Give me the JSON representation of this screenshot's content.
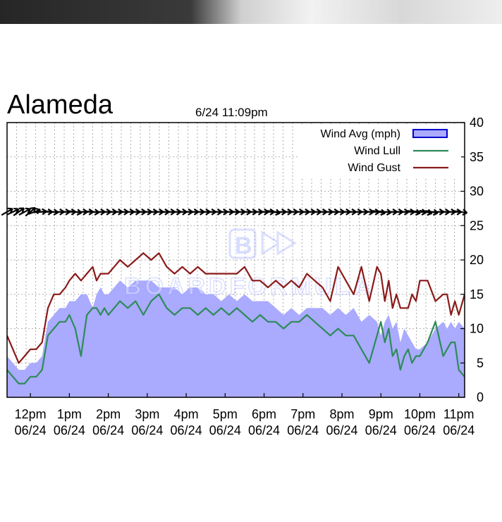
{
  "chart_data": {
    "type": "area",
    "title": "Alameda",
    "subtitle": "6/24 11:09pm",
    "xlabel": "",
    "ylabel": "",
    "ylim": [
      0,
      40
    ],
    "y_ticks": [
      0,
      5,
      10,
      15,
      20,
      25,
      30,
      35,
      40
    ],
    "x_ticks": [
      {
        "time": "12pm",
        "date": "06/24"
      },
      {
        "time": "1pm",
        "date": "06/24"
      },
      {
        "time": "2pm",
        "date": "06/24"
      },
      {
        "time": "3pm",
        "date": "06/24"
      },
      {
        "time": "4pm",
        "date": "06/24"
      },
      {
        "time": "5pm",
        "date": "06/24"
      },
      {
        "time": "6pm",
        "date": "06/24"
      },
      {
        "time": "7pm",
        "date": "06/24"
      },
      {
        "time": "8pm",
        "date": "06/24"
      },
      {
        "time": "9pm",
        "date": "06/24"
      },
      {
        "time": "10pm",
        "date": "06/24"
      },
      {
        "time": "11pm",
        "date": "06/24"
      }
    ],
    "x_range_hours": [
      11.4,
      23.15
    ],
    "grid": true,
    "legend_position": "top-right",
    "series": [
      {
        "name": "Wind Avg (mph)",
        "style": "area",
        "color": "#aaaaff",
        "x": [
          11.4,
          11.55,
          11.7,
          11.85,
          12.0,
          12.15,
          12.3,
          12.45,
          12.6,
          12.75,
          12.9,
          13.0,
          13.15,
          13.3,
          13.45,
          13.6,
          13.7,
          13.8,
          13.9,
          14.0,
          14.15,
          14.3,
          14.5,
          14.7,
          14.9,
          15.1,
          15.3,
          15.5,
          15.7,
          15.9,
          16.1,
          16.3,
          16.5,
          16.7,
          16.9,
          17.1,
          17.3,
          17.5,
          17.7,
          17.9,
          18.1,
          18.3,
          18.5,
          18.7,
          18.9,
          19.1,
          19.3,
          19.5,
          19.7,
          19.9,
          20.1,
          20.3,
          20.5,
          20.7,
          20.9,
          21.0,
          21.1,
          21.2,
          21.3,
          21.4,
          21.5,
          21.6,
          21.7,
          21.8,
          21.9,
          22.0,
          22.2,
          22.4,
          22.6,
          22.7,
          22.8,
          22.9,
          23.0,
          23.15
        ],
        "y": [
          6,
          5,
          4,
          4,
          5,
          5,
          6,
          11,
          12,
          13,
          13,
          14,
          14,
          15,
          15,
          13,
          15,
          16,
          15,
          15,
          16,
          17,
          16,
          17,
          17,
          17,
          16,
          16,
          16,
          15,
          16,
          16,
          15,
          15,
          14,
          15,
          14,
          15,
          14,
          14,
          14,
          13,
          12,
          13,
          12,
          13,
          13,
          13,
          12,
          13,
          12,
          13,
          11,
          12,
          11,
          9,
          11,
          12,
          10,
          11,
          8,
          10,
          9,
          8,
          7,
          7,
          8,
          10,
          11,
          10,
          11,
          10,
          11,
          10
        ]
      },
      {
        "name": "Wind Lull",
        "style": "line",
        "color": "#2e8b57",
        "x": [
          11.4,
          11.55,
          11.7,
          11.85,
          12.0,
          12.15,
          12.3,
          12.45,
          12.6,
          12.75,
          12.9,
          13.0,
          13.15,
          13.3,
          13.45,
          13.6,
          13.7,
          13.8,
          13.9,
          14.0,
          14.15,
          14.3,
          14.5,
          14.7,
          14.9,
          15.1,
          15.3,
          15.5,
          15.7,
          15.9,
          16.1,
          16.3,
          16.5,
          16.7,
          16.9,
          17.1,
          17.3,
          17.5,
          17.7,
          17.9,
          18.1,
          18.3,
          18.5,
          18.7,
          18.9,
          19.1,
          19.3,
          19.5,
          19.7,
          19.9,
          20.1,
          20.3,
          20.5,
          20.7,
          20.9,
          21.0,
          21.1,
          21.2,
          21.3,
          21.4,
          21.5,
          21.6,
          21.7,
          21.8,
          21.9,
          22.0,
          22.2,
          22.4,
          22.6,
          22.7,
          22.8,
          22.9,
          23.0,
          23.15
        ],
        "y": [
          4,
          3,
          2,
          2,
          3,
          3,
          4,
          9,
          10,
          11,
          11,
          12,
          10,
          6,
          12,
          13,
          13,
          12,
          13,
          12,
          13,
          14,
          13,
          14,
          12,
          14,
          15,
          13,
          12,
          13,
          13,
          12,
          13,
          12,
          13,
          12,
          13,
          12,
          11,
          12,
          11,
          11,
          10,
          11,
          11,
          12,
          11,
          10,
          9,
          10,
          9,
          9,
          7,
          5,
          9,
          11,
          8,
          10,
          6,
          7,
          4,
          6,
          7,
          5,
          6,
          6,
          8,
          11,
          6,
          7,
          8,
          8,
          4,
          3
        ]
      },
      {
        "name": "Wind Gust",
        "style": "line",
        "color": "#8b1a1a",
        "x": [
          11.4,
          11.55,
          11.7,
          11.85,
          12.0,
          12.15,
          12.3,
          12.45,
          12.6,
          12.75,
          12.9,
          13.0,
          13.15,
          13.3,
          13.45,
          13.6,
          13.7,
          13.8,
          13.9,
          14.0,
          14.15,
          14.3,
          14.5,
          14.7,
          14.9,
          15.1,
          15.3,
          15.5,
          15.7,
          15.9,
          16.1,
          16.3,
          16.5,
          16.7,
          16.9,
          17.1,
          17.3,
          17.5,
          17.7,
          17.9,
          18.1,
          18.3,
          18.5,
          18.7,
          18.9,
          19.1,
          19.3,
          19.5,
          19.7,
          19.9,
          20.1,
          20.3,
          20.5,
          20.7,
          20.9,
          21.0,
          21.1,
          21.2,
          21.3,
          21.4,
          21.5,
          21.6,
          21.7,
          21.8,
          21.9,
          22.0,
          22.2,
          22.4,
          22.6,
          22.7,
          22.8,
          22.9,
          23.0,
          23.15
        ],
        "y": [
          9,
          7,
          5,
          6,
          7,
          7,
          8,
          13,
          15,
          15,
          16,
          17,
          18,
          17,
          18,
          19,
          17,
          18,
          18,
          18,
          19,
          20,
          19,
          20,
          21,
          20,
          21,
          19,
          18,
          19,
          18,
          19,
          18,
          18,
          18,
          18,
          18,
          19,
          17,
          17,
          16,
          17,
          16,
          17,
          16,
          18,
          17,
          16,
          14,
          19,
          17,
          15,
          19,
          14,
          19,
          18,
          14,
          17,
          13,
          15,
          13,
          13,
          13,
          15,
          14,
          17,
          17,
          14,
          15,
          15,
          12,
          14,
          12,
          15
        ]
      }
    ]
  },
  "wind_direction_arrows": {
    "level_mph": 27,
    "hours": [
      11.4,
      11.55,
      11.7,
      11.85,
      12.0,
      12.1,
      12.25,
      12.4,
      12.55,
      12.7,
      12.85,
      13.0,
      13.15,
      13.3,
      13.45,
      13.6,
      13.75,
      13.9,
      14.05,
      14.2,
      14.35,
      14.5,
      14.65,
      14.8,
      14.95,
      15.1,
      15.25,
      15.4,
      15.55,
      15.7,
      15.85,
      16.0,
      16.15,
      16.3,
      16.45,
      16.6,
      16.75,
      16.9,
      17.05,
      17.2,
      17.35,
      17.5,
      17.65,
      17.8,
      17.95,
      18.1,
      18.25,
      18.4,
      18.55,
      18.7,
      18.85,
      19.0,
      19.15,
      19.3,
      19.45,
      19.6,
      19.75,
      19.9,
      20.05,
      20.2,
      20.35,
      20.5,
      20.65,
      20.8,
      20.95,
      21.1,
      21.25,
      21.4,
      21.55,
      21.7,
      21.85,
      22.0,
      22.15,
      22.3,
      22.45,
      22.6,
      22.75,
      22.9,
      23.05
    ],
    "tilt_deg": [
      -30,
      -25,
      -35,
      -28,
      -40,
      -20,
      -5,
      0,
      5,
      0,
      0,
      0,
      8,
      0,
      0,
      5,
      0,
      0,
      0,
      0,
      0,
      0,
      0,
      0,
      0,
      0,
      0,
      0,
      0,
      0,
      0,
      0,
      0,
      0,
      0,
      0,
      0,
      0,
      0,
      0,
      0,
      0,
      0,
      0,
      0,
      0,
      10,
      0,
      0,
      0,
      0,
      0,
      0,
      0,
      0,
      0,
      0,
      0,
      0,
      0,
      0,
      0,
      0,
      0,
      10,
      5,
      0,
      0,
      0,
      0,
      10,
      5,
      12,
      10,
      0,
      0,
      0,
      0,
      8
    ]
  },
  "colors": {
    "avg_fill": "#aaaaff",
    "avg_legend_border": "#0000cc",
    "lull": "#2e8b57",
    "gust": "#8b1a1a",
    "grid": "#9a9a9a",
    "arrow": "#000000"
  }
}
